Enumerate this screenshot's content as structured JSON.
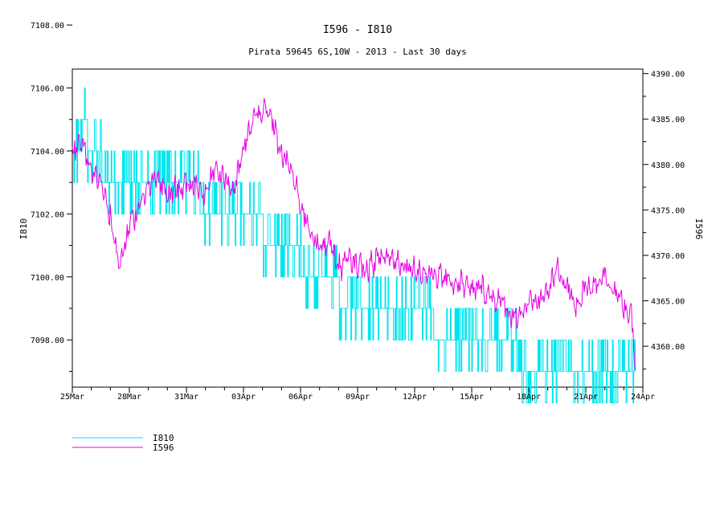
{
  "chart_data": {
    "type": "line",
    "title": "I596 - I810",
    "subtitle": "Pirata 59645 6S,10W - 2013 - Last 30 days",
    "ylabel_left": "I810",
    "ylabel_right": "I596",
    "x_ticks": [
      "25Mar",
      "28Mar",
      "31Mar",
      "03Apr",
      "06Apr",
      "09Apr",
      "12Apr",
      "15Apr",
      "18Apr",
      "21Apr",
      "24Apr"
    ],
    "x_range_days": [
      0,
      30
    ],
    "left_axis": {
      "ylim": [
        7096.5,
        7106.6
      ],
      "ticks": [
        "7098.00",
        "7100.00",
        "7102.00",
        "7104.00",
        "7106.00",
        "7108.00"
      ]
    },
    "right_axis": {
      "ylim": [
        4355.5,
        4390.5
      ],
      "ticks": [
        "4360.00",
        "4365.00",
        "4370.00",
        "4375.00",
        "4380.00",
        "4385.00",
        "4390.00"
      ]
    },
    "series": [
      {
        "name": "I810",
        "axis": "left",
        "color": "#00e5ee",
        "style": "step-noisy",
        "points": [
          [
            0,
            7104.0
          ],
          [
            0.7,
            7104.8
          ],
          [
            1,
            7103.8
          ],
          [
            2,
            7103.2
          ],
          [
            3,
            7103.0
          ],
          [
            4,
            7103.0
          ],
          [
            5,
            7103.0
          ],
          [
            6,
            7102.8
          ],
          [
            7,
            7102.3
          ],
          [
            8,
            7102.0
          ],
          [
            9,
            7101.8
          ],
          [
            10,
            7101.5
          ],
          [
            11,
            7100.8
          ],
          [
            12,
            7100.5
          ],
          [
            13,
            7100.0
          ],
          [
            14,
            7099.5
          ],
          [
            15,
            7099.2
          ],
          [
            16,
            7099.0
          ],
          [
            17,
            7098.8
          ],
          [
            18,
            7098.6
          ],
          [
            19,
            7098.5
          ],
          [
            20,
            7098.3
          ],
          [
            21,
            7098.2
          ],
          [
            22,
            7098.0
          ],
          [
            23,
            7097.6
          ],
          [
            24,
            7097.3
          ],
          [
            25,
            7097.0
          ],
          [
            26,
            7097.0
          ],
          [
            27,
            7097.0
          ],
          [
            28,
            7096.8
          ],
          [
            29,
            7096.8
          ],
          [
            29.6,
            7096.8
          ]
        ]
      },
      {
        "name": "I596",
        "axis": "right",
        "color": "#e600e6",
        "style": "noisy",
        "points": [
          [
            0,
            4381.0
          ],
          [
            0.5,
            4382.5
          ],
          [
            1,
            4379.0
          ],
          [
            1.5,
            4378.5
          ],
          [
            2,
            4374.0
          ],
          [
            2.5,
            4368.5
          ],
          [
            3,
            4373.5
          ],
          [
            3.5,
            4375.0
          ],
          [
            4,
            4377.5
          ],
          [
            4.5,
            4378.5
          ],
          [
            5,
            4376.5
          ],
          [
            5.5,
            4377.5
          ],
          [
            6,
            4377.5
          ],
          [
            6.5,
            4378.0
          ],
          [
            7,
            4376.5
          ],
          [
            7.5,
            4380.0
          ],
          [
            8,
            4378.5
          ],
          [
            8.5,
            4377.0
          ],
          [
            9,
            4381.5
          ],
          [
            9.5,
            4385.0
          ],
          [
            10,
            4386.0
          ],
          [
            10.5,
            4385.0
          ],
          [
            11,
            4381.0
          ],
          [
            11.5,
            4379.5
          ],
          [
            12,
            4375.5
          ],
          [
            12.5,
            4373.0
          ],
          [
            13,
            4370.5
          ],
          [
            13.5,
            4372.0
          ],
          [
            14,
            4368.5
          ],
          [
            14.5,
            4369.5
          ],
          [
            15,
            4369.0
          ],
          [
            15.5,
            4368.5
          ],
          [
            16,
            4369.5
          ],
          [
            16.5,
            4370.0
          ],
          [
            17,
            4369.5
          ],
          [
            17.5,
            4369.0
          ],
          [
            18,
            4368.5
          ],
          [
            18.5,
            4368.0
          ],
          [
            19,
            4368.0
          ],
          [
            19.5,
            4367.5
          ],
          [
            20,
            4367.0
          ],
          [
            20.5,
            4367.0
          ],
          [
            21,
            4366.0
          ],
          [
            21.5,
            4366.5
          ],
          [
            22,
            4365.5
          ],
          [
            22.5,
            4365.0
          ],
          [
            23,
            4363.5
          ],
          [
            23.5,
            4363.5
          ],
          [
            24,
            4364.5
          ],
          [
            24.5,
            4365.0
          ],
          [
            25,
            4366.0
          ],
          [
            25.5,
            4368.5
          ],
          [
            26,
            4366.5
          ],
          [
            26.5,
            4364.5
          ],
          [
            27,
            4366.5
          ],
          [
            27.5,
            4367.0
          ],
          [
            28,
            4368.0
          ],
          [
            28.5,
            4366.0
          ],
          [
            29,
            4364.5
          ],
          [
            29.4,
            4363.0
          ],
          [
            29.6,
            4358.5
          ]
        ]
      }
    ],
    "legend_placement": "bottom-left"
  }
}
